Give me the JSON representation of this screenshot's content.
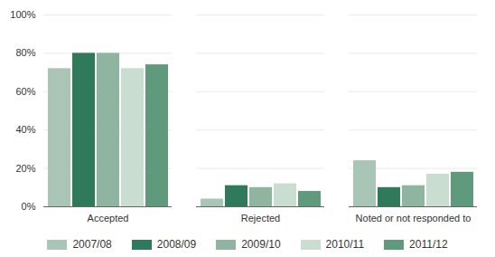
{
  "chart_data": {
    "type": "bar",
    "categories": [
      "Accepted",
      "Rejected",
      "Noted or not responded to"
    ],
    "series": [
      {
        "name": "2007/08",
        "color": "#a9c5b6",
        "values": [
          72,
          4,
          24
        ]
      },
      {
        "name": "2008/09",
        "color": "#2f7a5a",
        "values": [
          80,
          11,
          10
        ]
      },
      {
        "name": "2009/10",
        "color": "#8fb4a0",
        "values": [
          80,
          10,
          11
        ]
      },
      {
        "name": "2010/11",
        "color": "#c9ddd1",
        "values": [
          72,
          12,
          17
        ]
      },
      {
        "name": "2011/12",
        "color": "#5e9a7b",
        "values": [
          74,
          8,
          18
        ]
      }
    ],
    "ylim": [
      0,
      100
    ],
    "yticks": [
      {
        "value": 0,
        "label": "0%"
      },
      {
        "value": 20,
        "label": "20%"
      },
      {
        "value": 40,
        "label": "40%"
      },
      {
        "value": 60,
        "label": "60%"
      },
      {
        "value": 80,
        "label": "80%"
      },
      {
        "value": 100,
        "label": "100%"
      }
    ],
    "grid": true,
    "legend": "bottom"
  }
}
